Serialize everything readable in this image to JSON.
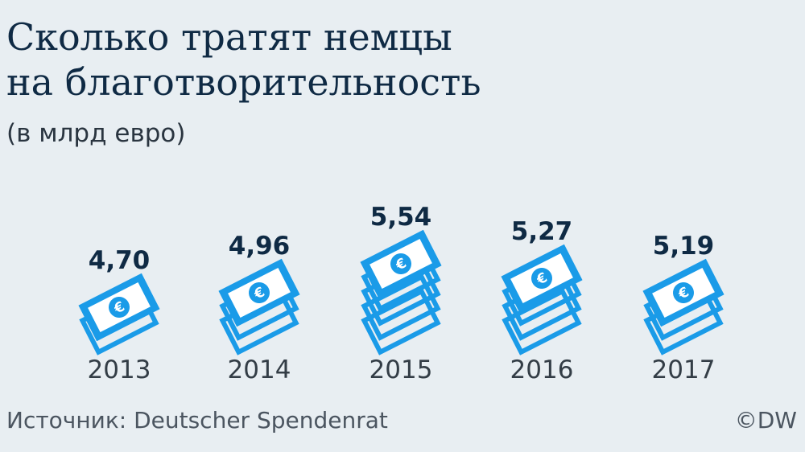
{
  "title_lines": [
    "Сколько тратят немцы",
    "на благотворительность"
  ],
  "subtitle": "(в млрд евро)",
  "source": "Источник: Deutscher Spendenrat",
  "copyright": "©DW",
  "colors": {
    "background": "#e8eef2",
    "banknote": "#1a9be8",
    "value_text": "#0f2a44",
    "axis_text": "#333d46",
    "euro_symbol": "#1a9be8"
  },
  "icons": {
    "banknote": "euro-banknote-icon"
  },
  "chart_data": {
    "type": "bar",
    "categories": [
      "2013",
      "2014",
      "2015",
      "2016",
      "2017"
    ],
    "values": [
      4.7,
      4.96,
      5.54,
      5.27,
      5.19
    ],
    "value_labels": [
      "4,70",
      "4,96",
      "5,54",
      "5,27",
      "5,19"
    ],
    "stack_counts": [
      2,
      3,
      5,
      4,
      3
    ],
    "title": "Сколько тратят немцы на благотворительность",
    "ylabel": "",
    "xlabel": "",
    "grid": false,
    "legend": "none"
  }
}
